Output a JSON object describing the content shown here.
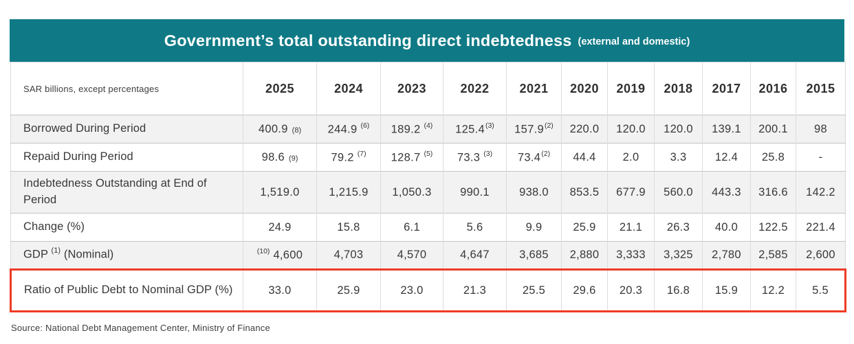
{
  "title": {
    "main": "Government’s total outstanding direct indebtedness",
    "sub": "(external and domestic)"
  },
  "colors": {
    "header_bg": "#0f7a86",
    "highlight_border": "#ee3b26",
    "stripe_bg": "#f2f2f2"
  },
  "table": {
    "corner_label": "SAR billions, except percentages",
    "years": [
      "2025",
      "2024",
      "2023",
      "2022",
      "2021",
      "2020",
      "2019",
      "2018",
      "2017",
      "2016",
      "2015"
    ],
    "rows": [
      {
        "label": "Borrowed During Period",
        "stripe": true,
        "tall": false,
        "highlight": false,
        "cells": [
          {
            "v": "400.9",
            "n": "(8)",
            "np": "base"
          },
          {
            "v": "244.9",
            "n": "(6)",
            "np": "sup"
          },
          {
            "v": "189.2",
            "n": "(4)",
            "np": "sup"
          },
          {
            "v": "125.4",
            "n": "(3)",
            "np": "sup",
            "t": true
          },
          {
            "v": "157.9",
            "n": "(2)",
            "np": "sup",
            "t": true
          },
          "220.0",
          "120.0",
          "120.0",
          "139.1",
          "200.1",
          "98"
        ]
      },
      {
        "label": "Repaid During Period",
        "stripe": false,
        "tall": false,
        "highlight": false,
        "cells": [
          {
            "v": "98.6",
            "n": "(9)",
            "np": "base"
          },
          {
            "v": "79.2",
            "n": "(7)",
            "np": "sup"
          },
          {
            "v": "128.7",
            "n": "(5)",
            "np": "sup"
          },
          {
            "v": "73.3",
            "n": "(3)",
            "np": "sup"
          },
          {
            "v": "73.4",
            "n": "(2)",
            "np": "sup",
            "t": true
          },
          "44.4",
          "2.0",
          "3.3",
          "12.4",
          "25.8",
          "-"
        ]
      },
      {
        "label": "Indebtedness Outstanding at End of Period",
        "stripe": true,
        "tall": true,
        "highlight": false,
        "cells": [
          "1,519.0",
          "1,215.9",
          "1,050.3",
          "990.1",
          "938.0",
          "853.5",
          "677.9",
          "560.0",
          "443.3",
          "316.6",
          "142.2"
        ]
      },
      {
        "label": "Change (%)",
        "stripe": false,
        "tall": false,
        "highlight": false,
        "cells": [
          "24.9",
          "15.8",
          "6.1",
          "5.6",
          "9.9",
          "25.9",
          "21.1",
          "26.3",
          "40.0",
          "122.5",
          "221.4"
        ]
      },
      {
        "label_parts": {
          "pre": "GDP ",
          "sup": "(1)",
          "post": " (Nominal)"
        },
        "stripe": true,
        "tall": false,
        "highlight": false,
        "cells": [
          {
            "v": "4,600",
            "n": "(10)",
            "np": "presup"
          },
          "4,703",
          "4,570",
          "4,647",
          "3,685",
          "2,880",
          "3,333",
          "3,325",
          "2,780",
          "2,585",
          "2,600"
        ]
      },
      {
        "label": "Ratio of Public Debt to Nominal GDP (%)",
        "stripe": false,
        "tall": true,
        "highlight": true,
        "cells": [
          "33.0",
          "25.9",
          "23.0",
          "21.3",
          "25.5",
          "29.6",
          "20.3",
          "16.8",
          "15.9",
          "12.2",
          "5.5"
        ]
      }
    ]
  },
  "source": "Source:  National Debt Management Center, Ministry of Finance"
}
